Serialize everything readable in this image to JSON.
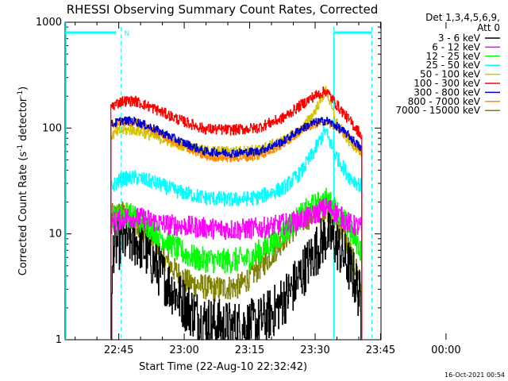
{
  "chart_data": {
    "type": "line",
    "title": "RHESSI Observing Summary Count Rates, Corrected",
    "ylabel_main": "Corrected Count Rate (s",
    "ylabel_sup1": "-1",
    "ylabel_mid": " detector",
    "ylabel_sup2": "-1",
    "ylabel_end": ")",
    "xlabel": "Start Time (22-Aug-10 22:32:42)",
    "yscale": "log",
    "ylim": [
      1,
      1000
    ],
    "xlim_minutes_after_start": [
      0,
      72.4
    ],
    "xtick_labels": [
      "22:45",
      "23:00",
      "23:15",
      "23:30",
      "23:45",
      "00:00"
    ],
    "xtick_minutes_after_start": [
      12.3,
      27.3,
      42.3,
      57.3,
      72.3,
      87.3
    ],
    "ytick_labels": [
      "1",
      "10",
      "100",
      "1000"
    ],
    "ytick_values": [
      1,
      10,
      100,
      1000
    ],
    "legend_header_line1": "Det 1,3,4,5,6,9,",
    "legend_header_line2": "Att 0",
    "legend_position": "right",
    "night_marker_label": "N",
    "footer_date": "16-Oct-2021 00:54",
    "series": [
      {
        "name": "3 - 6 keV",
        "color": "#000000"
      },
      {
        "name": "6 - 12 keV",
        "color": "#ff00ff"
      },
      {
        "name": "12 - 25 keV",
        "color": "#00ff00"
      },
      {
        "name": "25 - 50 keV",
        "color": "#00ffff"
      },
      {
        "name": "50 - 100 keV",
        "color": "#d4c400"
      },
      {
        "name": "100 - 300 keV",
        "color": "#ff0000"
      },
      {
        "name": "300 - 800 keV",
        "color": "#0000cc"
      },
      {
        "name": "800 - 7000 keV",
        "color": "#ff8c00"
      },
      {
        "name": "7000 - 15000 keV",
        "color": "#808000"
      }
    ],
    "series_profiles": [
      {
        "name": "3 - 6 keV",
        "points": [
          [
            10.5,
            1.0
          ],
          [
            11,
            7.5
          ],
          [
            14,
            8.8
          ],
          [
            17,
            8.2
          ],
          [
            20,
            5.5
          ],
          [
            24,
            3.2
          ],
          [
            28,
            2.0
          ],
          [
            32,
            1.5
          ],
          [
            38,
            1.3
          ],
          [
            44,
            1.4
          ],
          [
            48,
            1.9
          ],
          [
            52,
            3.0
          ],
          [
            55,
            4.8
          ],
          [
            58,
            7.5
          ],
          [
            60,
            10.0
          ],
          [
            62,
            8.2
          ],
          [
            64,
            6.0
          ],
          [
            66,
            4.0
          ],
          [
            67.5,
            2.6
          ],
          [
            68,
            1.0
          ]
        ],
        "noise": 0.25
      },
      {
        "name": "6 - 12 keV",
        "points": [
          [
            10.5,
            12.5
          ],
          [
            14,
            14.5
          ],
          [
            18,
            14.0
          ],
          [
            22,
            12.5
          ],
          [
            28,
            11.8
          ],
          [
            34,
            11.2
          ],
          [
            40,
            11.0
          ],
          [
            46,
            11.5
          ],
          [
            52,
            12.8
          ],
          [
            56,
            14.5
          ],
          [
            60,
            18.0
          ],
          [
            62,
            16.0
          ],
          [
            64,
            13.5
          ],
          [
            66,
            12.0
          ],
          [
            68,
            11.5
          ]
        ],
        "noise": 0.1
      },
      {
        "name": "12 - 25 keV",
        "points": [
          [
            10.5,
            14
          ],
          [
            14,
            15.5
          ],
          [
            18,
            13
          ],
          [
            22,
            9.5
          ],
          [
            26,
            7.0
          ],
          [
            30,
            5.8
          ],
          [
            36,
            5.5
          ],
          [
            42,
            5.8
          ],
          [
            48,
            8.5
          ],
          [
            52,
            12.5
          ],
          [
            56,
            17.5
          ],
          [
            60,
            21.0
          ],
          [
            62,
            17.0
          ],
          [
            64,
            13.0
          ],
          [
            66,
            9.5
          ],
          [
            67.5,
            7.5
          ],
          [
            68,
            6.5
          ]
        ],
        "noise": 0.12
      },
      {
        "name": "25 - 50 keV",
        "points": [
          [
            10.5,
            28
          ],
          [
            13,
            33
          ],
          [
            16,
            34
          ],
          [
            20,
            31
          ],
          [
            26,
            25
          ],
          [
            32,
            22
          ],
          [
            38,
            21
          ],
          [
            44,
            22
          ],
          [
            50,
            27
          ],
          [
            54,
            38
          ],
          [
            57,
            60
          ],
          [
            59.5,
            95
          ],
          [
            62,
            55
          ],
          [
            65,
            35
          ],
          [
            67,
            30
          ],
          [
            68,
            28
          ]
        ],
        "noise": 0.07
      },
      {
        "name": "50 - 100 keV",
        "points": [
          [
            10.5,
            85
          ],
          [
            13,
            95
          ],
          [
            16,
            96
          ],
          [
            20,
            84
          ],
          [
            26,
            70
          ],
          [
            32,
            61
          ],
          [
            38,
            60
          ],
          [
            44,
            62
          ],
          [
            50,
            76
          ],
          [
            54,
            95
          ],
          [
            57,
            140
          ],
          [
            59.8,
            230
          ],
          [
            62,
            115
          ],
          [
            65,
            75
          ],
          [
            67.5,
            62
          ],
          [
            68,
            55
          ]
        ],
        "noise": 0.05
      },
      {
        "name": "100 - 300 keV",
        "points": [
          [
            10.5,
            160
          ],
          [
            13,
            180
          ],
          [
            16,
            180
          ],
          [
            20,
            155
          ],
          [
            26,
            120
          ],
          [
            32,
            98
          ],
          [
            38,
            96
          ],
          [
            44,
            100
          ],
          [
            50,
            125
          ],
          [
            54,
            165
          ],
          [
            57,
            200
          ],
          [
            59.8,
            225
          ],
          [
            62,
            170
          ],
          [
            65,
            120
          ],
          [
            67.5,
            90
          ],
          [
            68,
            80
          ]
        ],
        "noise": 0.05
      },
      {
        "name": "300 - 800 keV",
        "points": [
          [
            10.5,
            108
          ],
          [
            13,
            118
          ],
          [
            16,
            116
          ],
          [
            20,
            100
          ],
          [
            26,
            76
          ],
          [
            32,
            60
          ],
          [
            38,
            58
          ],
          [
            44,
            60
          ],
          [
            50,
            75
          ],
          [
            54,
            98
          ],
          [
            57,
            112
          ],
          [
            59.8,
            118
          ],
          [
            62,
            105
          ],
          [
            65,
            85
          ],
          [
            67.5,
            66
          ],
          [
            68,
            62
          ]
        ],
        "noise": 0.04
      },
      {
        "name": "800 - 7000 keV",
        "points": [
          [
            10.5,
            105
          ],
          [
            13,
            114
          ],
          [
            16,
            112
          ],
          [
            20,
            96
          ],
          [
            26,
            70
          ],
          [
            32,
            54
          ],
          [
            38,
            52
          ],
          [
            44,
            54
          ],
          [
            50,
            70
          ],
          [
            54,
            95
          ],
          [
            57,
            110
          ],
          [
            59.8,
            116
          ],
          [
            62,
            102
          ],
          [
            65,
            82
          ],
          [
            67.5,
            62
          ],
          [
            68,
            55
          ]
        ],
        "noise": 0.04
      },
      {
        "name": "7000 - 15000 keV",
        "points": [
          [
            10.5,
            14.5
          ],
          [
            13,
            16
          ],
          [
            16,
            13.5
          ],
          [
            20,
            8.5
          ],
          [
            24,
            5.0
          ],
          [
            28,
            3.5
          ],
          [
            34,
            3.0
          ],
          [
            40,
            3.2
          ],
          [
            46,
            5.5
          ],
          [
            50,
            9.0
          ],
          [
            54,
            13.0
          ],
          [
            58,
            16.5
          ],
          [
            60,
            17.5
          ],
          [
            62,
            14.0
          ],
          [
            64,
            9.5
          ],
          [
            66,
            5.5
          ],
          [
            67.5,
            3.8
          ],
          [
            68,
            2.5
          ]
        ],
        "noise": 0.12
      }
    ],
    "saa_night_markers": {
      "night1_end_minutes": 12.8,
      "night2_start_minutes": 61.6,
      "dashed_lines_minutes": [
        12.8,
        61.6,
        70.3
      ]
    }
  }
}
